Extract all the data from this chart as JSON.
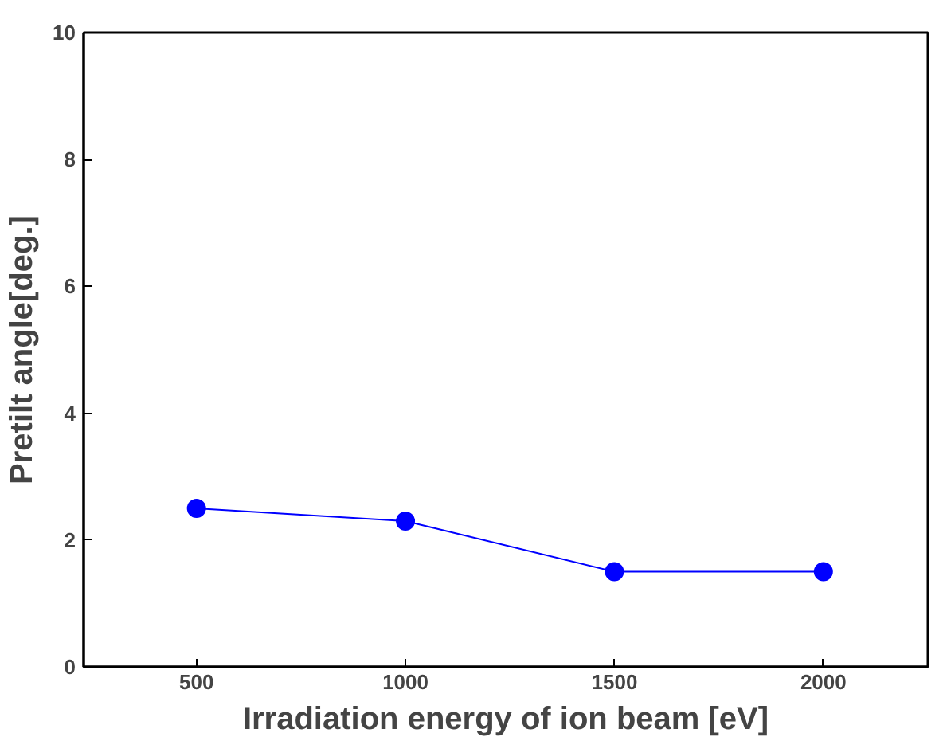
{
  "chart_data": {
    "type": "line",
    "xlabel": "Irradiation energy of ion beam [eV]",
    "ylabel": "Pretilt angle[deg.]",
    "x": [
      500,
      1000,
      1500,
      2000
    ],
    "series": [
      {
        "color": "#0000ff",
        "values": [
          2.5,
          2.3,
          1.5,
          1.5
        ]
      }
    ],
    "xlim": [
      230,
      2250
    ],
    "xticks": [
      500,
      1000,
      1500,
      2000
    ],
    "ylim": [
      0,
      10
    ],
    "yticks": [
      0,
      2,
      4,
      6,
      8,
      10
    ],
    "marker": "circle",
    "line_style": "solid",
    "grid": false
  }
}
